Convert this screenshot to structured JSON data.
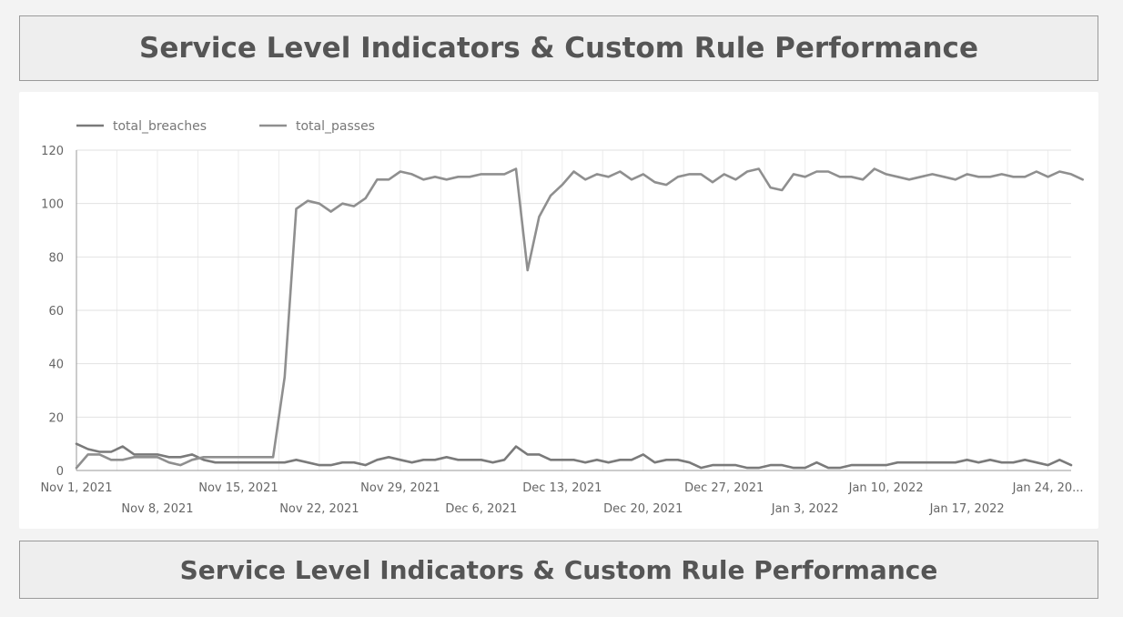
{
  "header": {
    "title": "Service Level Indicators & Custom Rule Performance"
  },
  "footer": {
    "title": "Service Level Indicators & Custom Rule Performance"
  },
  "chart_data": {
    "type": "line",
    "title": "",
    "xlabel": "",
    "ylabel": "",
    "x_start": "2021-11-01",
    "x_end": "2022-01-26",
    "ylim": [
      0,
      120
    ],
    "y_ticks": [
      0,
      20,
      40,
      60,
      80,
      100,
      120
    ],
    "grid": true,
    "legend_position": "top-left",
    "x_tick_labels": [
      {
        "date": "2021-11-01",
        "label": "Nov 1, 2021"
      },
      {
        "date": "2021-11-08",
        "label": "Nov 8, 2021"
      },
      {
        "date": "2021-11-15",
        "label": "Nov 15, 2021"
      },
      {
        "date": "2021-11-22",
        "label": "Nov 22, 2021"
      },
      {
        "date": "2021-11-29",
        "label": "Nov 29, 2021"
      },
      {
        "date": "2021-12-06",
        "label": "Dec 6, 2021"
      },
      {
        "date": "2021-12-13",
        "label": "Dec 13, 2021"
      },
      {
        "date": "2021-12-20",
        "label": "Dec 20, 2021"
      },
      {
        "date": "2021-12-27",
        "label": "Dec 27, 2021"
      },
      {
        "date": "2022-01-03",
        "label": "Jan 3, 2022"
      },
      {
        "date": "2022-01-10",
        "label": "Jan 10, 2022"
      },
      {
        "date": "2022-01-17",
        "label": "Jan 17, 2022"
      },
      {
        "date": "2022-01-24",
        "label": "Jan 24, 20..."
      }
    ],
    "series": [
      {
        "name": "total_breaches",
        "color": "#7a7a7a",
        "points": [
          [
            "2021-11-01",
            10
          ],
          [
            "2021-11-02",
            8
          ],
          [
            "2021-11-03",
            7
          ],
          [
            "2021-11-04",
            7
          ],
          [
            "2021-11-05",
            9
          ],
          [
            "2021-11-06",
            6
          ],
          [
            "2021-11-07",
            6
          ],
          [
            "2021-11-08",
            6
          ],
          [
            "2021-11-09",
            5
          ],
          [
            "2021-11-10",
            5
          ],
          [
            "2021-11-11",
            6
          ],
          [
            "2021-11-12",
            4
          ],
          [
            "2021-11-13",
            3
          ],
          [
            "2021-11-14",
            3
          ],
          [
            "2021-11-15",
            3
          ],
          [
            "2021-11-16",
            3
          ],
          [
            "2021-11-17",
            3
          ],
          [
            "2021-11-18",
            3
          ],
          [
            "2021-11-19",
            3
          ],
          [
            "2021-11-20",
            4
          ],
          [
            "2021-11-21",
            3
          ],
          [
            "2021-11-22",
            2
          ],
          [
            "2021-11-23",
            2
          ],
          [
            "2021-11-24",
            3
          ],
          [
            "2021-11-25",
            3
          ],
          [
            "2021-11-26",
            2
          ],
          [
            "2021-11-27",
            4
          ],
          [
            "2021-11-28",
            5
          ],
          [
            "2021-11-29",
            4
          ],
          [
            "2021-11-30",
            3
          ],
          [
            "2021-12-01",
            4
          ],
          [
            "2021-12-02",
            4
          ],
          [
            "2021-12-03",
            5
          ],
          [
            "2021-12-04",
            4
          ],
          [
            "2021-12-05",
            4
          ],
          [
            "2021-12-06",
            4
          ],
          [
            "2021-12-07",
            3
          ],
          [
            "2021-12-08",
            4
          ],
          [
            "2021-12-09",
            9
          ],
          [
            "2021-12-10",
            6
          ],
          [
            "2021-12-11",
            6
          ],
          [
            "2021-12-12",
            4
          ],
          [
            "2021-12-13",
            4
          ],
          [
            "2021-12-14",
            4
          ],
          [
            "2021-12-15",
            3
          ],
          [
            "2021-12-16",
            4
          ],
          [
            "2021-12-17",
            3
          ],
          [
            "2021-12-18",
            4
          ],
          [
            "2021-12-19",
            4
          ],
          [
            "2021-12-20",
            6
          ],
          [
            "2021-12-21",
            3
          ],
          [
            "2021-12-22",
            4
          ],
          [
            "2021-12-23",
            4
          ],
          [
            "2021-12-24",
            3
          ],
          [
            "2021-12-25",
            1
          ],
          [
            "2021-12-26",
            2
          ],
          [
            "2021-12-27",
            2
          ],
          [
            "2021-12-28",
            2
          ],
          [
            "2021-12-29",
            1
          ],
          [
            "2021-12-30",
            1
          ],
          [
            "2021-12-31",
            2
          ],
          [
            "2022-01-01",
            2
          ],
          [
            "2022-01-02",
            1
          ],
          [
            "2022-01-03",
            1
          ],
          [
            "2022-01-04",
            3
          ],
          [
            "2022-01-05",
            1
          ],
          [
            "2022-01-06",
            1
          ],
          [
            "2022-01-07",
            2
          ],
          [
            "2022-01-08",
            2
          ],
          [
            "2022-01-09",
            2
          ],
          [
            "2022-01-10",
            2
          ],
          [
            "2022-01-11",
            3
          ],
          [
            "2022-01-12",
            3
          ],
          [
            "2022-01-13",
            3
          ],
          [
            "2022-01-14",
            3
          ],
          [
            "2022-01-15",
            3
          ],
          [
            "2022-01-16",
            3
          ],
          [
            "2022-01-17",
            4
          ],
          [
            "2022-01-18",
            3
          ],
          [
            "2022-01-19",
            4
          ],
          [
            "2022-01-20",
            3
          ],
          [
            "2022-01-21",
            3
          ],
          [
            "2022-01-22",
            4
          ],
          [
            "2022-01-23",
            3
          ],
          [
            "2022-01-24",
            2
          ],
          [
            "2022-01-25",
            4
          ],
          [
            "2022-01-26",
            2
          ]
        ]
      },
      {
        "name": "total_passes",
        "color": "#8f8f8f",
        "points": [
          [
            "2021-11-01",
            1
          ],
          [
            "2021-11-02",
            6
          ],
          [
            "2021-11-03",
            6
          ],
          [
            "2021-11-04",
            4
          ],
          [
            "2021-11-05",
            4
          ],
          [
            "2021-11-06",
            5
          ],
          [
            "2021-11-07",
            5
          ],
          [
            "2021-11-08",
            5
          ],
          [
            "2021-11-09",
            3
          ],
          [
            "2021-11-10",
            2
          ],
          [
            "2021-11-11",
            4
          ],
          [
            "2021-11-12",
            5
          ],
          [
            "2021-11-13",
            5
          ],
          [
            "2021-11-14",
            5
          ],
          [
            "2021-11-15",
            5
          ],
          [
            "2021-11-16",
            5
          ],
          [
            "2021-11-17",
            5
          ],
          [
            "2021-11-18",
            5
          ],
          [
            "2021-11-19",
            35
          ],
          [
            "2021-11-20",
            98
          ],
          [
            "2021-11-21",
            101
          ],
          [
            "2021-11-22",
            100
          ],
          [
            "2021-11-23",
            97
          ],
          [
            "2021-11-24",
            100
          ],
          [
            "2021-11-25",
            99
          ],
          [
            "2021-11-26",
            102
          ],
          [
            "2021-11-27",
            109
          ],
          [
            "2021-11-28",
            109
          ],
          [
            "2021-11-29",
            112
          ],
          [
            "2021-11-30",
            111
          ],
          [
            "2021-12-01",
            109
          ],
          [
            "2021-12-02",
            110
          ],
          [
            "2021-12-03",
            109
          ],
          [
            "2021-12-04",
            110
          ],
          [
            "2021-12-05",
            110
          ],
          [
            "2021-12-06",
            111
          ],
          [
            "2021-12-07",
            111
          ],
          [
            "2021-12-08",
            111
          ],
          [
            "2021-12-09",
            113
          ],
          [
            "2021-12-10",
            75
          ],
          [
            "2021-12-11",
            95
          ],
          [
            "2021-12-12",
            103
          ],
          [
            "2021-12-13",
            107
          ],
          [
            "2021-12-14",
            112
          ],
          [
            "2021-12-15",
            109
          ],
          [
            "2021-12-16",
            111
          ],
          [
            "2021-12-17",
            110
          ],
          [
            "2021-12-18",
            112
          ],
          [
            "2021-12-19",
            109
          ],
          [
            "2021-12-20",
            111
          ],
          [
            "2021-12-21",
            108
          ],
          [
            "2021-12-22",
            107
          ],
          [
            "2021-12-23",
            110
          ],
          [
            "2021-12-24",
            111
          ],
          [
            "2021-12-25",
            111
          ],
          [
            "2021-12-26",
            108
          ],
          [
            "2021-12-27",
            111
          ],
          [
            "2021-12-28",
            109
          ],
          [
            "2021-12-29",
            112
          ],
          [
            "2021-12-30",
            113
          ],
          [
            "2021-12-31",
            106
          ],
          [
            "2022-01-01",
            105
          ],
          [
            "2022-01-02",
            111
          ],
          [
            "2022-01-03",
            110
          ],
          [
            "2022-01-04",
            112
          ],
          [
            "2022-01-05",
            112
          ],
          [
            "2022-01-06",
            110
          ],
          [
            "2022-01-07",
            110
          ],
          [
            "2022-01-08",
            109
          ],
          [
            "2022-01-09",
            113
          ],
          [
            "2022-01-10",
            111
          ],
          [
            "2022-01-11",
            110
          ],
          [
            "2022-01-12",
            109
          ],
          [
            "2022-01-13",
            110
          ],
          [
            "2022-01-14",
            111
          ],
          [
            "2022-01-15",
            110
          ],
          [
            "2022-01-16",
            109
          ],
          [
            "2022-01-17",
            111
          ],
          [
            "2022-01-18",
            110
          ],
          [
            "2022-01-19",
            110
          ],
          [
            "2022-01-20",
            111
          ],
          [
            "2022-01-21",
            110
          ],
          [
            "2022-01-22",
            110
          ],
          [
            "2022-01-23",
            112
          ],
          [
            "2022-01-24",
            110
          ],
          [
            "2022-01-25",
            112
          ],
          [
            "2022-01-26",
            111
          ],
          [
            "2022-01-27",
            109
          ]
        ]
      }
    ]
  }
}
